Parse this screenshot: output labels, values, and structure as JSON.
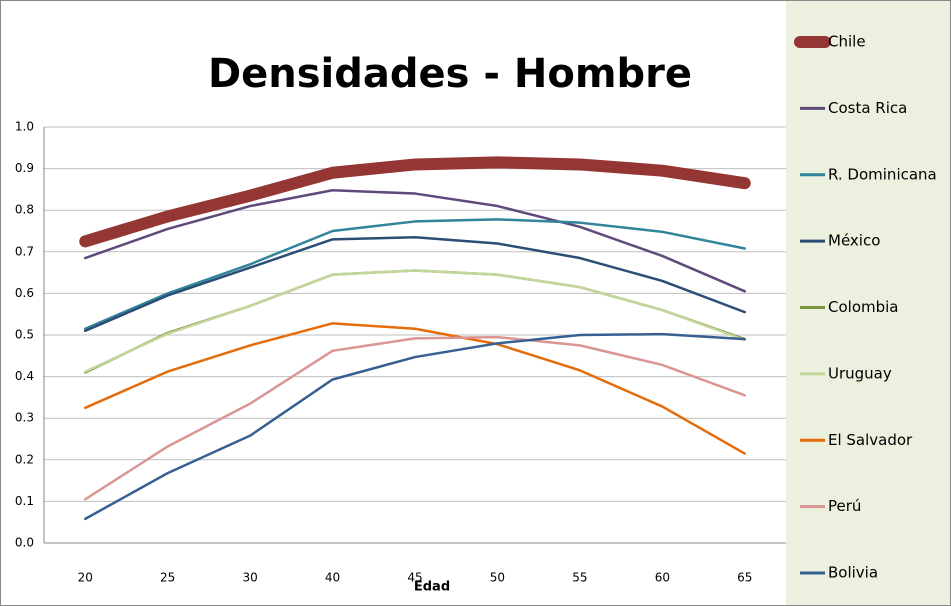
{
  "chart_data": {
    "type": "line",
    "title": "Densidades - Hombre",
    "x_label": "Edad",
    "categories": [
      "20",
      "25",
      "30",
      "40",
      "45",
      "50",
      "55",
      "60",
      "65"
    ],
    "series": [
      {
        "name": "Chile",
        "color": "#943634",
        "values": [
          0.725,
          0.785,
          0.835,
          0.89,
          0.91,
          0.915,
          0.91,
          0.895,
          0.865
        ]
      },
      {
        "name": "Costa Rica",
        "color": "#604a7b",
        "values": [
          0.685,
          0.755,
          0.81,
          0.848,
          0.84,
          0.81,
          0.76,
          0.69,
          0.605
        ]
      },
      {
        "name": "R. Dominicana",
        "color": "#31849b",
        "values": [
          0.515,
          0.6,
          0.67,
          0.75,
          0.773,
          0.778,
          0.77,
          0.748,
          0.708
        ]
      },
      {
        "name": "México",
        "color": "#2c4d75",
        "values": [
          0.51,
          0.595,
          0.662,
          0.73,
          0.735,
          0.72,
          0.685,
          0.63,
          0.555
        ]
      },
      {
        "name": "Colombia",
        "color": "#77933c",
        "values": [
          0.41,
          0.505,
          0.57,
          0.645,
          0.655,
          0.645,
          0.615,
          0.56,
          0.49
        ]
      },
      {
        "name": "Uruguay",
        "color": "#c3d69b",
        "values": [
          0.412,
          0.503,
          0.57,
          0.645,
          0.655,
          0.645,
          0.615,
          0.56,
          0.488
        ]
      },
      {
        "name": "El Salvador",
        "color": "#e46c0a",
        "values": [
          0.325,
          0.412,
          0.475,
          0.528,
          0.515,
          0.478,
          0.415,
          0.328,
          0.215
        ]
      },
      {
        "name": "Perú",
        "color": "#d99694",
        "values": [
          0.105,
          0.232,
          0.335,
          0.462,
          0.492,
          0.495,
          0.475,
          0.428,
          0.355
        ]
      },
      {
        "name": "Bolivia",
        "color": "#376092",
        "values": [
          0.058,
          0.168,
          0.258,
          0.393,
          0.447,
          0.48,
          0.5,
          0.502,
          0.49
        ]
      }
    ],
    "ylim": [
      0,
      1
    ],
    "yticks": [
      {
        "value": 0,
        "label": "0.0"
      },
      0.1,
      0.2,
      0.3,
      0.4,
      0.5,
      0.6,
      0.7,
      0.8,
      0.9,
      {
        "value": 1,
        "label": "1.0"
      }
    ],
    "grid": true,
    "legend": "right"
  }
}
